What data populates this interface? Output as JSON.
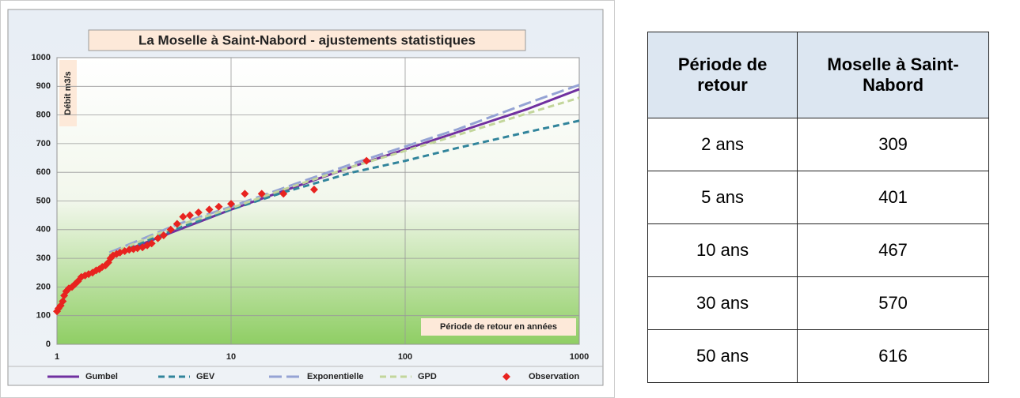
{
  "chart_data": {
    "type": "line",
    "title": "La Moselle à Saint-Nabord  - ajustements statistiques",
    "y_label": "Débit m3/s",
    "x_label": "Période de retour en années",
    "xlog": true,
    "grid": true,
    "legend": "bottom",
    "xlim": [
      1,
      1000
    ],
    "xticks": [
      1,
      10,
      100,
      1000
    ],
    "ylim": [
      0,
      1000
    ],
    "yticks": [
      0,
      100,
      200,
      300,
      400,
      500,
      600,
      700,
      800,
      900,
      1000
    ],
    "series": [
      {
        "name": "Gumbel",
        "type": "line",
        "dash": "solid",
        "color": "#7030a0",
        "x": [
          2,
          5,
          10,
          20,
          50,
          100,
          200,
          500,
          1000
        ],
        "values": [
          305,
          400,
          470,
          535,
          620,
          680,
          740,
          820,
          890
        ]
      },
      {
        "name": "GEV",
        "type": "line",
        "dash": "dashed",
        "color": "#31849b",
        "x": [
          2,
          5,
          10,
          20,
          50,
          100,
          200,
          500,
          1000
        ],
        "values": [
          310,
          405,
          470,
          530,
          600,
          640,
          685,
          740,
          780
        ]
      },
      {
        "name": "Exponentielle",
        "type": "line",
        "dash": "longdash",
        "color": "#95a3d4",
        "x": [
          2,
          5,
          10,
          20,
          50,
          100,
          200,
          500,
          1000
        ],
        "values": [
          320,
          420,
          480,
          545,
          630,
          690,
          750,
          840,
          905
        ]
      },
      {
        "name": "GPD",
        "type": "line",
        "dash": "dashed",
        "color": "#c3d69b",
        "x": [
          2,
          5,
          10,
          20,
          50,
          100,
          200,
          500,
          1000
        ],
        "values": [
          315,
          415,
          475,
          540,
          620,
          675,
          730,
          805,
          860
        ]
      },
      {
        "name": "Observation",
        "type": "scatter",
        "marker": "diamond",
        "color": "#e8231f",
        "x": [
          1.0,
          1.02,
          1.05,
          1.08,
          1.1,
          1.13,
          1.17,
          1.22,
          1.27,
          1.32,
          1.38,
          1.45,
          1.52,
          1.6,
          1.68,
          1.75,
          1.82,
          1.9,
          1.97,
          2.03,
          2.1,
          2.2,
          2.3,
          2.45,
          2.6,
          2.75,
          2.9,
          3.1,
          3.3,
          3.5,
          3.8,
          4.1,
          4.5,
          4.9,
          5.3,
          5.8,
          6.5,
          7.5,
          8.5,
          10,
          12,
          15,
          20,
          30,
          60
        ],
        "values": [
          115,
          125,
          135,
          150,
          170,
          185,
          195,
          200,
          210,
          220,
          235,
          240,
          245,
          250,
          258,
          262,
          270,
          275,
          285,
          300,
          310,
          315,
          320,
          325,
          330,
          332,
          335,
          338,
          345,
          352,
          370,
          380,
          400,
          420,
          445,
          450,
          460,
          470,
          480,
          490,
          525,
          525,
          525,
          540,
          640
        ]
      }
    ]
  },
  "table": {
    "header": [
      "Période de retour",
      "Moselle à Saint-Nabord"
    ],
    "rows": [
      [
        "2 ans",
        309
      ],
      [
        "5 ans",
        401
      ],
      [
        "10 ans",
        467
      ],
      [
        "30 ans",
        570
      ],
      [
        "50 ans",
        616
      ]
    ]
  }
}
